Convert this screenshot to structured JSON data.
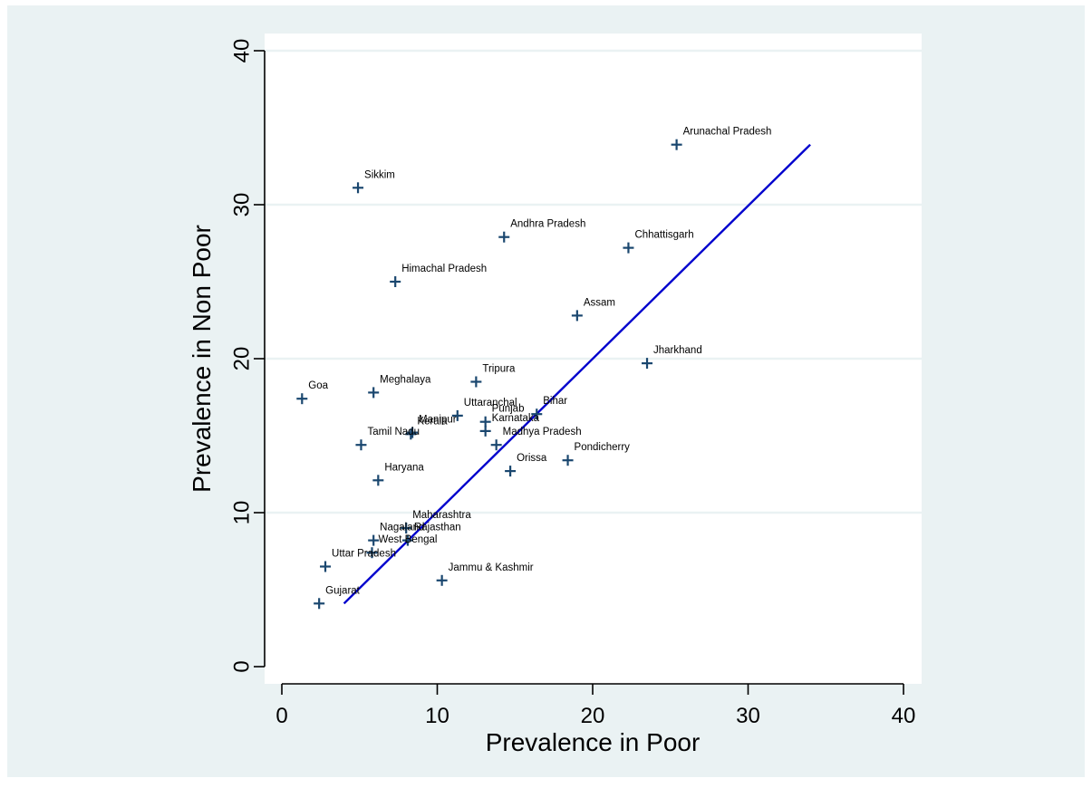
{
  "chart_data": {
    "type": "scatter",
    "title": "",
    "xlabel": "Prevalence in Poor",
    "ylabel": "Prevalence in Non Poor",
    "xlim": [
      -1.2,
      41
    ],
    "ylim": [
      -1.2,
      41
    ],
    "xticks": [
      0,
      10,
      20,
      30,
      40
    ],
    "yticks": [
      0,
      10,
      20,
      30,
      40
    ],
    "grid": "horizontal",
    "colors": {
      "outer_background": "#eaf2f3",
      "plot_background": "#ffffff",
      "gridline": "#eaf2f3",
      "marker": "#1a476f",
      "fit_line": "#0000cd",
      "axis": "#000000"
    },
    "points": [
      {
        "label": "Arunachal Pradesh",
        "x": 25.4,
        "y": 33.9
      },
      {
        "label": "Sikkim",
        "x": 4.9,
        "y": 31.1
      },
      {
        "label": "Andhra Pradesh",
        "x": 14.3,
        "y": 27.9
      },
      {
        "label": "Chhattisgarh",
        "x": 22.3,
        "y": 27.2
      },
      {
        "label": "Himachal Pradesh",
        "x": 7.3,
        "y": 25.0
      },
      {
        "label": "Assam",
        "x": 19.0,
        "y": 22.8
      },
      {
        "label": "Jharkhand",
        "x": 23.5,
        "y": 19.7
      },
      {
        "label": "Tripura",
        "x": 12.5,
        "y": 18.5
      },
      {
        "label": "Goa",
        "x": 1.3,
        "y": 17.4
      },
      {
        "label": "Meghalaya",
        "x": 5.9,
        "y": 17.8
      },
      {
        "label": "Uttaranchal",
        "x": 11.3,
        "y": 16.3
      },
      {
        "label": "Bihar",
        "x": 16.4,
        "y": 16.4
      },
      {
        "label": "Punjab",
        "x": 13.1,
        "y": 15.9
      },
      {
        "label": "Karnataka",
        "x": 13.1,
        "y": 15.3
      },
      {
        "label": "Kerala",
        "x": 8.3,
        "y": 15.1
      },
      {
        "label": "Manipur",
        "x": 8.4,
        "y": 15.2
      },
      {
        "label": "Tamil Nadu",
        "x": 5.1,
        "y": 14.4
      },
      {
        "label": "Madhya Pradesh",
        "x": 13.8,
        "y": 14.4
      },
      {
        "label": "Pondicherry",
        "x": 18.4,
        "y": 13.4
      },
      {
        "label": "Orissa",
        "x": 14.7,
        "y": 12.7
      },
      {
        "label": "Haryana",
        "x": 6.2,
        "y": 12.1
      },
      {
        "label": "Maharashtra",
        "x": 8.0,
        "y": 9.0
      },
      {
        "label": "Nagaland",
        "x": 5.9,
        "y": 8.2
      },
      {
        "label": "Rajasthan",
        "x": 8.1,
        "y": 8.2
      },
      {
        "label": "West Bengal",
        "x": 5.8,
        "y": 7.4
      },
      {
        "label": "Uttar Pradesh",
        "x": 2.8,
        "y": 6.5
      },
      {
        "label": "Jammu & Kashmir",
        "x": 10.3,
        "y": 5.6
      },
      {
        "label": "Gujarat",
        "x": 2.4,
        "y": 4.1
      }
    ],
    "fit_line": {
      "x": [
        4.0,
        34.0
      ],
      "y": [
        4.1,
        33.9
      ]
    }
  }
}
